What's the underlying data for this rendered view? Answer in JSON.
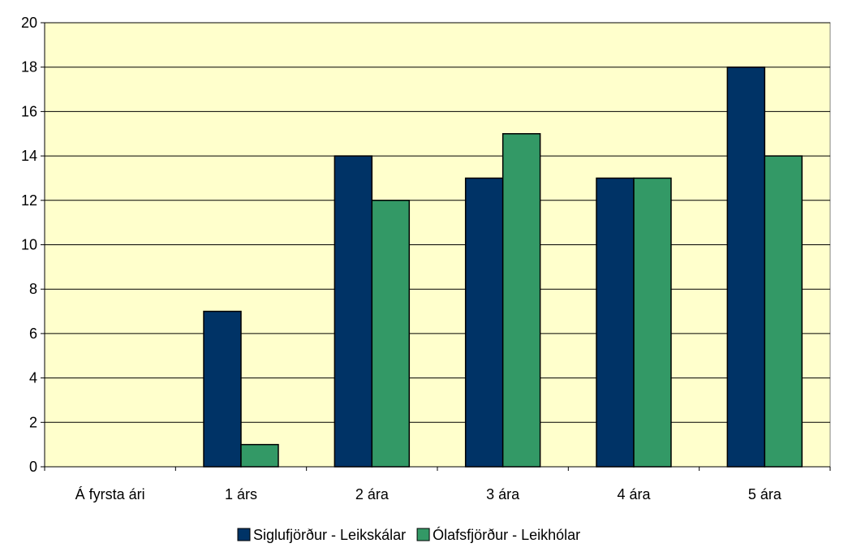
{
  "chart_data": {
    "type": "bar",
    "categories": [
      "Á fyrsta ári",
      "1 árs",
      "2 ára",
      "3 ára",
      "4 ára",
      "5 ára"
    ],
    "series": [
      {
        "name": "Siglufjörður - Leikskálar",
        "values": [
          0,
          7,
          14,
          13,
          13,
          18
        ],
        "color": "#003366"
      },
      {
        "name": "Ólafsfjörður - Leikhólar",
        "values": [
          0,
          1,
          12,
          15,
          13,
          14
        ],
        "color": "#339966"
      }
    ],
    "ylim": [
      0,
      20
    ],
    "yticks": [
      0,
      2,
      4,
      6,
      8,
      10,
      12,
      14,
      16,
      18,
      20
    ],
    "grid": true,
    "legend_position": "bottom",
    "plot_background": "#ffffcc",
    "title": "",
    "xlabel": "",
    "ylabel": ""
  }
}
